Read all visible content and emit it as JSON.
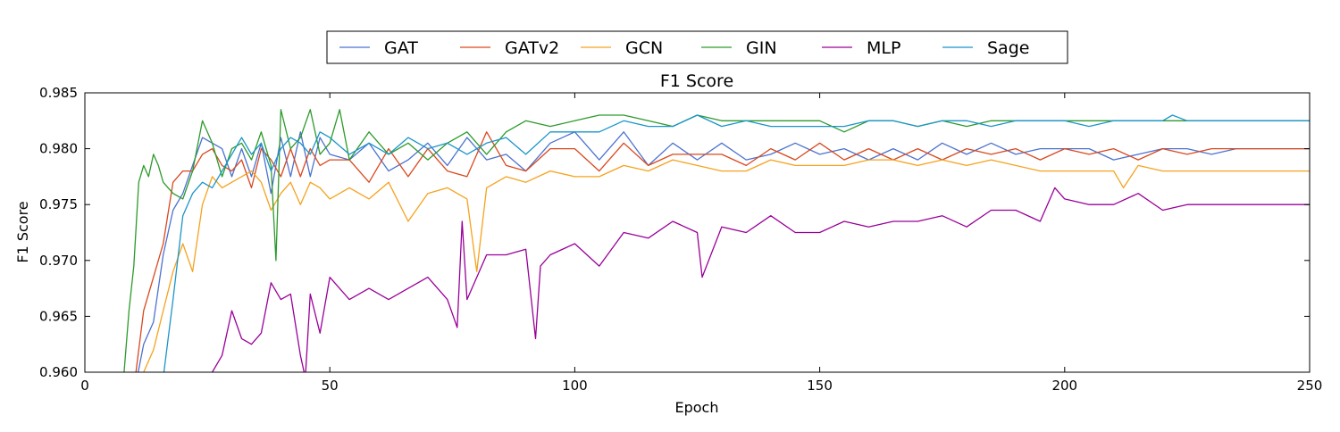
{
  "chart_data": {
    "type": "line",
    "title": "F1 Score",
    "xlabel": "Epoch",
    "ylabel": "F1 Score",
    "xlim": [
      0,
      250
    ],
    "ylim": [
      0.96,
      0.985
    ],
    "x_ticks": [
      0,
      50,
      100,
      150,
      200,
      250
    ],
    "y_ticks": [
      "0.960",
      "0.965",
      "0.970",
      "0.975",
      "0.980",
      "0.985"
    ],
    "grid": false,
    "legend_placement": "top-center",
    "series": [
      {
        "name": "GAT",
        "color": "#4c72d0",
        "x": [
          10,
          12,
          14,
          16,
          18,
          20,
          22,
          24,
          26,
          28,
          30,
          32,
          34,
          36,
          38,
          40,
          42,
          44,
          46,
          48,
          50,
          54,
          58,
          62,
          66,
          70,
          74,
          78,
          82,
          86,
          90,
          95,
          100,
          105,
          110,
          115,
          120,
          125,
          130,
          135,
          140,
          145,
          150,
          155,
          160,
          165,
          170,
          175,
          180,
          185,
          190,
          195,
          200,
          205,
          210,
          215,
          220,
          225,
          230,
          235,
          240,
          245,
          250
        ],
        "y": [
          0.958,
          0.9625,
          0.9645,
          0.9705,
          0.9745,
          0.976,
          0.9785,
          0.981,
          0.9805,
          0.98,
          0.9775,
          0.98,
          0.9775,
          0.9805,
          0.976,
          0.981,
          0.9775,
          0.9815,
          0.9775,
          0.981,
          0.9795,
          0.979,
          0.9805,
          0.978,
          0.979,
          0.9805,
          0.9785,
          0.981,
          0.979,
          0.9795,
          0.978,
          0.9805,
          0.9815,
          0.979,
          0.9815,
          0.9785,
          0.9805,
          0.979,
          0.9805,
          0.979,
          0.9795,
          0.9805,
          0.9795,
          0.98,
          0.979,
          0.98,
          0.979,
          0.9805,
          0.9795,
          0.9805,
          0.9795,
          0.98,
          0.98,
          0.98,
          0.979,
          0.9795,
          0.98,
          0.98,
          0.9795,
          0.98,
          0.98,
          0.98,
          0.98
        ]
      },
      {
        "name": "GATv2",
        "color": "#d9481e",
        "x": [
          10,
          12,
          14,
          16,
          18,
          20,
          22,
          24,
          26,
          28,
          30,
          32,
          34,
          36,
          38,
          40,
          42,
          44,
          46,
          48,
          50,
          54,
          58,
          62,
          66,
          70,
          74,
          78,
          82,
          86,
          90,
          95,
          100,
          105,
          110,
          115,
          120,
          125,
          130,
          135,
          140,
          145,
          150,
          155,
          160,
          165,
          170,
          175,
          180,
          185,
          190,
          195,
          200,
          205,
          210,
          215,
          220,
          225,
          230,
          235,
          240,
          245,
          250
        ],
        "y": [
          0.9585,
          0.9655,
          0.9685,
          0.9715,
          0.977,
          0.978,
          0.978,
          0.9795,
          0.98,
          0.9785,
          0.978,
          0.979,
          0.9765,
          0.98,
          0.979,
          0.9775,
          0.98,
          0.9775,
          0.98,
          0.9785,
          0.979,
          0.979,
          0.977,
          0.98,
          0.9775,
          0.98,
          0.978,
          0.9775,
          0.9815,
          0.9785,
          0.978,
          0.98,
          0.98,
          0.978,
          0.9805,
          0.9785,
          0.9795,
          0.9795,
          0.9795,
          0.9785,
          0.98,
          0.979,
          0.9805,
          0.979,
          0.98,
          0.979,
          0.98,
          0.979,
          0.98,
          0.9795,
          0.98,
          0.979,
          0.98,
          0.9795,
          0.98,
          0.979,
          0.98,
          0.9795,
          0.98,
          0.98,
          0.98,
          0.98,
          0.98
        ]
      },
      {
        "name": "GCN",
        "color": "#f5a21d",
        "x": [
          10,
          12,
          14,
          16,
          18,
          20,
          22,
          24,
          26,
          28,
          30,
          32,
          34,
          36,
          38,
          40,
          42,
          44,
          46,
          48,
          50,
          54,
          58,
          62,
          66,
          70,
          74,
          78,
          80,
          82,
          86,
          90,
          95,
          100,
          105,
          110,
          115,
          120,
          125,
          130,
          135,
          140,
          145,
          150,
          155,
          160,
          165,
          170,
          175,
          180,
          185,
          190,
          195,
          200,
          205,
          210,
          212,
          215,
          220,
          225,
          230,
          235,
          240,
          245,
          250
        ],
        "y": [
          0.957,
          0.96,
          0.962,
          0.9655,
          0.969,
          0.9715,
          0.969,
          0.975,
          0.9775,
          0.9765,
          0.977,
          0.9775,
          0.978,
          0.977,
          0.9745,
          0.976,
          0.977,
          0.975,
          0.977,
          0.9765,
          0.9755,
          0.9765,
          0.9755,
          0.977,
          0.9735,
          0.976,
          0.9765,
          0.9755,
          0.969,
          0.9765,
          0.9775,
          0.977,
          0.978,
          0.9775,
          0.9775,
          0.9785,
          0.978,
          0.979,
          0.9785,
          0.978,
          0.978,
          0.979,
          0.9785,
          0.9785,
          0.9785,
          0.979,
          0.979,
          0.9785,
          0.979,
          0.9785,
          0.979,
          0.9785,
          0.978,
          0.978,
          0.978,
          0.978,
          0.9765,
          0.9785,
          0.978,
          0.978,
          0.978,
          0.978,
          0.978,
          0.978,
          0.978
        ]
      },
      {
        "name": "GIN",
        "color": "#2c9a2c",
        "x": [
          8,
          9,
          10,
          11,
          12,
          13,
          14,
          15,
          16,
          18,
          20,
          22,
          24,
          26,
          28,
          30,
          32,
          34,
          36,
          38,
          39,
          40,
          42,
          44,
          46,
          48,
          50,
          52,
          54,
          58,
          62,
          66,
          70,
          74,
          78,
          82,
          86,
          90,
          95,
          100,
          105,
          110,
          115,
          120,
          125,
          130,
          135,
          140,
          145,
          150,
          155,
          160,
          165,
          170,
          175,
          180,
          185,
          190,
          195,
          200,
          205,
          210,
          215,
          220,
          225,
          230,
          235,
          240,
          245,
          250
        ],
        "y": [
          0.96,
          0.9655,
          0.9695,
          0.977,
          0.9785,
          0.9775,
          0.9795,
          0.9785,
          0.977,
          0.976,
          0.9755,
          0.978,
          0.9825,
          0.9805,
          0.9775,
          0.98,
          0.9805,
          0.979,
          0.9815,
          0.9785,
          0.97,
          0.9835,
          0.98,
          0.981,
          0.9835,
          0.9795,
          0.9805,
          0.9835,
          0.979,
          0.9815,
          0.9795,
          0.9805,
          0.979,
          0.9805,
          0.9815,
          0.9795,
          0.9815,
          0.9825,
          0.982,
          0.9825,
          0.983,
          0.983,
          0.9825,
          0.982,
          0.983,
          0.9825,
          0.9825,
          0.9825,
          0.9825,
          0.9825,
          0.9815,
          0.9825,
          0.9825,
          0.982,
          0.9825,
          0.982,
          0.9825,
          0.9825,
          0.9825,
          0.9825,
          0.9825,
          0.9825,
          0.9825,
          0.9825,
          0.9825,
          0.9825,
          0.9825,
          0.9825,
          0.9825,
          0.9825
        ]
      },
      {
        "name": "MLP",
        "color": "#990099",
        "x": [
          26,
          28,
          30,
          32,
          34,
          36,
          38,
          40,
          42,
          44,
          45,
          46,
          48,
          50,
          54,
          58,
          62,
          66,
          70,
          74,
          76,
          77,
          78,
          82,
          86,
          90,
          92,
          93,
          95,
          100,
          105,
          110,
          115,
          120,
          125,
          126,
          130,
          135,
          140,
          145,
          150,
          155,
          160,
          165,
          170,
          175,
          180,
          185,
          190,
          195,
          198,
          200,
          205,
          210,
          215,
          220,
          225,
          230,
          235,
          240,
          245,
          250
        ],
        "y": [
          0.96,
          0.9615,
          0.9655,
          0.963,
          0.9625,
          0.9635,
          0.968,
          0.9665,
          0.967,
          0.9615,
          0.9595,
          0.967,
          0.9635,
          0.9685,
          0.9665,
          0.9675,
          0.9665,
          0.9675,
          0.9685,
          0.9665,
          0.964,
          0.9735,
          0.9665,
          0.9705,
          0.9705,
          0.971,
          0.963,
          0.9695,
          0.9705,
          0.9715,
          0.9695,
          0.9725,
          0.972,
          0.9735,
          0.9725,
          0.9685,
          0.973,
          0.9725,
          0.974,
          0.9725,
          0.9725,
          0.9735,
          0.973,
          0.9735,
          0.9735,
          0.974,
          0.973,
          0.9745,
          0.9745,
          0.9735,
          0.9765,
          0.9755,
          0.975,
          0.975,
          0.976,
          0.9745,
          0.975,
          0.975,
          0.975,
          0.975,
          0.975,
          0.975
        ]
      },
      {
        "name": "Sage",
        "color": "#1b95c9",
        "x": [
          16,
          18,
          20,
          22,
          24,
          26,
          28,
          30,
          32,
          34,
          36,
          38,
          40,
          42,
          44,
          46,
          48,
          50,
          54,
          58,
          62,
          66,
          70,
          74,
          78,
          82,
          86,
          90,
          95,
          100,
          105,
          110,
          115,
          120,
          125,
          130,
          135,
          140,
          145,
          150,
          155,
          160,
          165,
          170,
          175,
          180,
          185,
          190,
          195,
          200,
          205,
          210,
          215,
          220,
          222,
          225,
          230,
          235,
          240,
          245,
          250
        ],
        "y": [
          0.9595,
          0.9665,
          0.974,
          0.976,
          0.977,
          0.9765,
          0.978,
          0.9795,
          0.981,
          0.9795,
          0.9805,
          0.978,
          0.98,
          0.981,
          0.9805,
          0.9795,
          0.9815,
          0.981,
          0.9795,
          0.9805,
          0.9795,
          0.981,
          0.98,
          0.9805,
          0.9795,
          0.9805,
          0.981,
          0.9795,
          0.9815,
          0.9815,
          0.9815,
          0.9825,
          0.982,
          0.982,
          0.983,
          0.982,
          0.9825,
          0.982,
          0.982,
          0.982,
          0.982,
          0.9825,
          0.9825,
          0.982,
          0.9825,
          0.9825,
          0.982,
          0.9825,
          0.9825,
          0.9825,
          0.982,
          0.9825,
          0.9825,
          0.9825,
          0.983,
          0.9825,
          0.9825,
          0.9825,
          0.9825,
          0.9825,
          0.9825
        ]
      }
    ]
  }
}
